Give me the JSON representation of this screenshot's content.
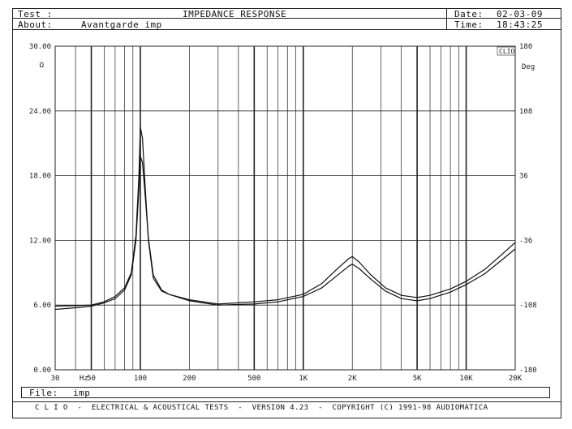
{
  "header": {
    "test_label": "Test :",
    "test_title": "IMPEDANCE RESPONSE",
    "about_label": "About:",
    "about_value": "Avantgarde imp",
    "date_label": "Date:",
    "date_value": "02-03-09",
    "time_label": "Time:",
    "time_value": "18:43:25"
  },
  "file": {
    "label": "File:",
    "value": "imp"
  },
  "footer": {
    "text": "C L I O  -  ELECTRICAL & ACOUSTICAL TESTS  -  VERSION 4.23  -  COPYRIGHT (C) 1991-98 AUDIOMATICA"
  },
  "chart_data": {
    "type": "line",
    "title": "IMPEDANCE RESPONSE",
    "x_scale": "log",
    "xlim": [
      30,
      20000
    ],
    "x_tick_labels": [
      {
        "value": 30,
        "label": "30"
      },
      {
        "value": 45,
        "label": "Hz"
      },
      {
        "value": 50,
        "label": "50"
      },
      {
        "value": 100,
        "label": "100"
      },
      {
        "value": 200,
        "label": "200"
      },
      {
        "value": 500,
        "label": "500"
      },
      {
        "value": 1000,
        "label": "1K"
      },
      {
        "value": 2000,
        "label": "2K"
      },
      {
        "value": 5000,
        "label": "5K"
      },
      {
        "value": 10000,
        "label": "10K"
      },
      {
        "value": 20000,
        "label": "20K"
      }
    ],
    "left_axis": {
      "unit": "Ω",
      "ylim": [
        0,
        30
      ],
      "ticks": [
        "0.00",
        "6.00",
        "12.00",
        "18.00",
        "24.00",
        "30.00"
      ]
    },
    "right_axis": {
      "unit": "Deg",
      "badge": "CLIO",
      "ylim": [
        -180,
        180
      ],
      "ticks": [
        "-180",
        "-108",
        "-36",
        "36",
        "108",
        "180"
      ]
    },
    "grid": true,
    "series": [
      {
        "x": [
          30,
          40,
          50,
          60,
          70,
          80,
          88,
          94,
          98,
          100,
          103,
          107,
          112,
          120,
          135,
          150,
          200,
          300,
          500,
          700,
          1000,
          1300,
          1600,
          1900,
          2000,
          2200,
          2600,
          3200,
          4000,
          5000,
          6000,
          8000,
          10000,
          13000,
          16000,
          20000
        ],
        "values": [
          5.9,
          5.95,
          6.0,
          6.3,
          6.8,
          7.6,
          9.0,
          12.5,
          18.0,
          22.5,
          21.5,
          17.0,
          12.0,
          8.5,
          7.3,
          7.0,
          6.5,
          6.1,
          6.3,
          6.5,
          7.0,
          8.0,
          9.3,
          10.3,
          10.5,
          10.0,
          8.8,
          7.6,
          6.9,
          6.7,
          6.9,
          7.5,
          8.2,
          9.3,
          10.5,
          11.8
        ]
      },
      {
        "x": [
          30,
          40,
          50,
          60,
          70,
          80,
          88,
          94,
          98,
          100,
          103,
          107,
          112,
          120,
          135,
          150,
          200,
          300,
          500,
          700,
          1000,
          1300,
          1600,
          1900,
          2000,
          2200,
          2600,
          3200,
          4000,
          5000,
          6000,
          8000,
          10000,
          13000,
          16000,
          20000
        ],
        "values": [
          5.6,
          5.75,
          5.9,
          6.2,
          6.6,
          7.4,
          8.8,
          12.0,
          16.8,
          19.8,
          19.2,
          16.2,
          12.2,
          8.8,
          7.4,
          7.0,
          6.4,
          6.0,
          6.1,
          6.3,
          6.8,
          7.6,
          8.7,
          9.6,
          9.8,
          9.4,
          8.4,
          7.3,
          6.6,
          6.4,
          6.6,
          7.2,
          7.9,
          8.9,
          10.0,
          11.2
        ]
      }
    ]
  }
}
